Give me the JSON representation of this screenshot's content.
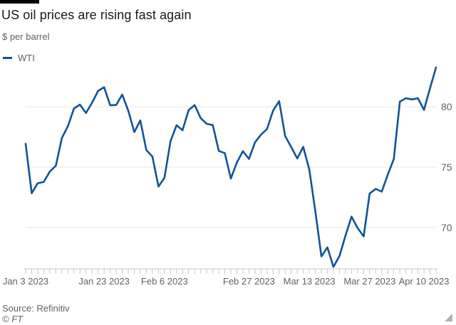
{
  "header": {
    "title": "US oil prices are rising fast again",
    "subtitle": "$ per barrel"
  },
  "footer": {
    "source": "Source: Refinitiv",
    "copyright": "© FT"
  },
  "colors": {
    "line": "#0f5499",
    "grid": "#e6e6e6",
    "axis": "#cbc8c5",
    "text_muted": "#66605c",
    "title_text": "#1a1817",
    "accent_bar": "#000000",
    "background": "#ffffff"
  },
  "chart_data": {
    "type": "line",
    "title": "US oil prices are rising fast again",
    "subtitle": "$ per barrel",
    "ylabel": "$ per barrel",
    "legend_position": "top-left",
    "y_axis_side": "right",
    "grid": "horizontal-only",
    "y_ticks": [
      70,
      75,
      80
    ],
    "ylim": [
      66.4,
      83.6
    ],
    "x_tick_labels": [
      "Jan 3 2023",
      "Jan 23 2023",
      "Feb 6 2023",
      "Feb 27 2023",
      "Mar 13 2023",
      "Mar 27 2023",
      "Apr 10 2023"
    ],
    "x_tick_indices": [
      0,
      13,
      23,
      37,
      47,
      57,
      66
    ],
    "legend": [
      {
        "name": "WTI",
        "color": "#0f5499"
      }
    ],
    "series": [
      {
        "name": "WTI",
        "x": [
          "Jan 3",
          "Jan 4",
          "Jan 5",
          "Jan 6",
          "Jan 9",
          "Jan 10",
          "Jan 11",
          "Jan 12",
          "Jan 13",
          "Jan 17",
          "Jan 18",
          "Jan 19",
          "Jan 20",
          "Jan 23",
          "Jan 24",
          "Jan 25",
          "Jan 26",
          "Jan 27",
          "Jan 30",
          "Jan 31",
          "Feb 1",
          "Feb 2",
          "Feb 3",
          "Feb 6",
          "Feb 7",
          "Feb 8",
          "Feb 9",
          "Feb 10",
          "Feb 13",
          "Feb 14",
          "Feb 15",
          "Feb 16",
          "Feb 17",
          "Feb 21",
          "Feb 22",
          "Feb 23",
          "Feb 24",
          "Feb 27",
          "Feb 28",
          "Mar 1",
          "Mar 2",
          "Mar 3",
          "Mar 6",
          "Mar 7",
          "Mar 8",
          "Mar 9",
          "Mar 10",
          "Mar 13",
          "Mar 14",
          "Mar 15",
          "Mar 16",
          "Mar 17",
          "Mar 20",
          "Mar 21",
          "Mar 22",
          "Mar 23",
          "Mar 24",
          "Mar 27",
          "Mar 28",
          "Mar 29",
          "Mar 30",
          "Mar 31",
          "Apr 3",
          "Apr 4",
          "Apr 5",
          "Apr 6",
          "Apr 10",
          "Apr 11",
          "Apr 12"
        ],
        "values": [
          76.93,
          72.84,
          73.67,
          73.77,
          74.63,
          75.12,
          77.41,
          78.39,
          79.86,
          80.18,
          79.48,
          80.33,
          81.31,
          81.62,
          80.13,
          80.15,
          81.01,
          79.68,
          77.9,
          78.87,
          76.41,
          75.88,
          73.39,
          74.11,
          77.14,
          78.47,
          78.06,
          79.72,
          80.14,
          79.06,
          78.59,
          78.49,
          76.34,
          76.16,
          74.05,
          75.39,
          76.32,
          75.68,
          77.05,
          77.69,
          78.16,
          79.68,
          80.46,
          77.58,
          76.66,
          75.72,
          76.68,
          74.8,
          71.33,
          67.61,
          68.35,
          66.74,
          67.64,
          69.33,
          70.9,
          69.96,
          69.26,
          72.81,
          73.2,
          72.97,
          74.37,
          75.67,
          80.42,
          80.71,
          80.61,
          80.7,
          79.74,
          81.53,
          83.26
        ]
      }
    ]
  }
}
